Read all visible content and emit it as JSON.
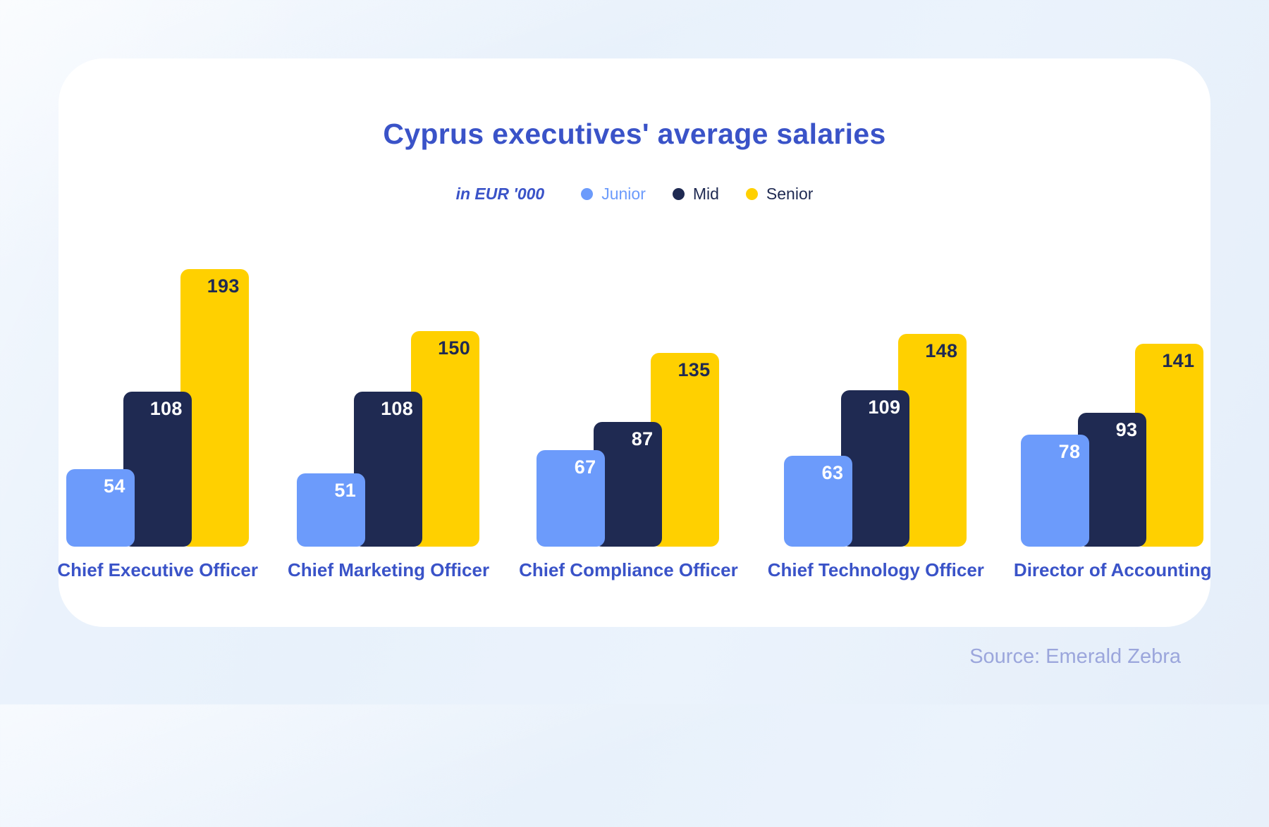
{
  "title": "Cyprus executives' average salaries",
  "legend": {
    "units_label": "in EUR '000",
    "items": [
      {
        "label": "Junior",
        "color": "#6C9BFB",
        "text_color": "#6C9BFB"
      },
      {
        "label": "Mid",
        "color": "#1F2A52",
        "text_color": "#1F2A52"
      },
      {
        "label": "Senior",
        "color": "#FFD000",
        "text_color": "#1F2A52"
      }
    ]
  },
  "chart_data": {
    "type": "bar",
    "title": "Cyprus executives' average salaries",
    "units": "EUR '000",
    "categories": [
      "Chief Executive Officer",
      "Chief Marketing Officer",
      "Chief Compliance Officer",
      "Chief Technology Officer",
      "Director of Accounting"
    ],
    "series": [
      {
        "name": "Junior",
        "color": "#6C9BFB",
        "value_label_color": "#FFFFFF",
        "values": [
          54,
          51,
          67,
          63,
          78
        ]
      },
      {
        "name": "Mid",
        "color": "#1F2A52",
        "value_label_color": "#FFFFFF",
        "values": [
          108,
          108,
          87,
          109,
          93
        ]
      },
      {
        "name": "Senior",
        "color": "#FFD000",
        "value_label_color": "#1F2A52",
        "values": [
          193,
          150,
          135,
          148,
          141
        ]
      }
    ],
    "ylim": [
      0,
      200
    ],
    "grid": false,
    "value_labels": "inside-top-right",
    "legend_position": "top-center"
  },
  "source": "Source: Emerald Zebra",
  "colors": {
    "card_background": "#FFFFFF",
    "page_background": "#E8F1FB",
    "title_text": "#3A53C8",
    "category_text": "#3A53C8",
    "source_text": "#9BA6DC"
  }
}
